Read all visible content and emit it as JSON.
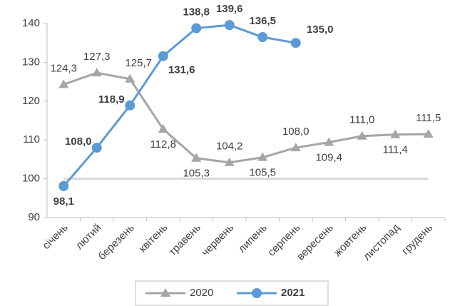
{
  "chart_data": {
    "type": "line",
    "categories": [
      "січень",
      "лютий",
      "березень",
      "квітень",
      "травень",
      "червень",
      "липень",
      "серпень",
      "вересень",
      "жовтень",
      "листопад",
      "грудень"
    ],
    "series": [
      {
        "name": "2020",
        "color": "#a5a5a5",
        "marker": "triangle",
        "values": [
          124.3,
          127.3,
          125.7,
          112.8,
          105.3,
          104.2,
          105.5,
          108.0,
          109.4,
          111.0,
          111.4,
          111.5
        ],
        "value_labels": [
          "124,3",
          "127,3",
          "125,7",
          "112,8",
          "105,3",
          "104,2",
          "105,5",
          "108,0",
          "109,4",
          "111,0",
          "111,4",
          "111,5"
        ]
      },
      {
        "name": "2021",
        "color": "#5b9bd5",
        "marker": "circle",
        "bold": true,
        "values": [
          98.1,
          108.0,
          118.9,
          131.6,
          138.8,
          139.6,
          136.5,
          135.0,
          null,
          null,
          null,
          null
        ],
        "value_labels": [
          "98,1",
          "108,0",
          "118,9",
          "131,6",
          "138,8",
          "139,6",
          "136,5",
          "135,0",
          null,
          null,
          null,
          null
        ]
      }
    ],
    "ylim": [
      90,
      140
    ],
    "yticks": [
      90,
      100,
      110,
      120,
      130,
      140
    ],
    "reference_line": 100,
    "legend": "bottom"
  }
}
